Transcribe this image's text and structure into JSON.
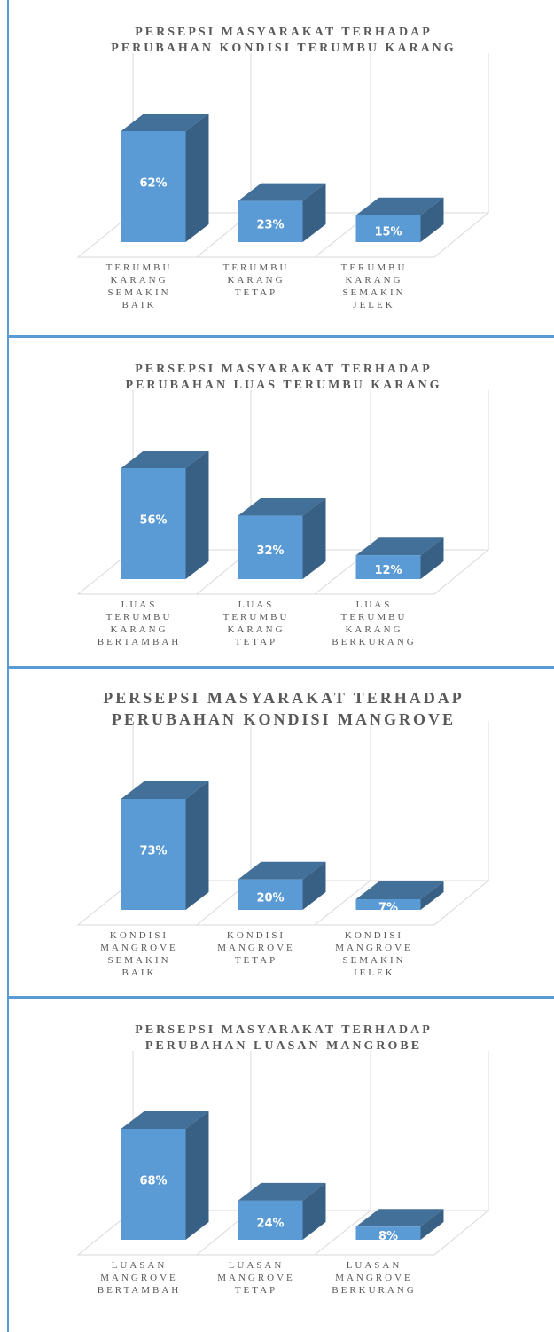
{
  "chart_data": [
    {
      "type": "bar",
      "title": [
        "PERSEPSI MASYARAKAT TERHADAP",
        "PERUBAHAN KONDISI TERUMBU KARANG"
      ],
      "categories": [
        "TERUMBU KARANG SEMAKIN BAIK",
        "TERUMBU KARANG TETAP",
        "TERUMBU KARANG SEMAKIN JELEK"
      ],
      "values": [
        62,
        23,
        15
      ],
      "value_labels": [
        "62%",
        "23%",
        "15%"
      ],
      "color": "#5b9bd5"
    },
    {
      "type": "bar",
      "title": [
        "PERSEPSI MASYARAKAT TERHADAP",
        "PERUBAHAN LUAS TERUMBU KARANG"
      ],
      "categories": [
        "LUAS TERUMBU KARANG BERTAMBAH",
        "LUAS TERUMBU KARANG TETAP",
        "LUAS TERUMBU KARANG BERKURANG"
      ],
      "values": [
        56,
        32,
        12
      ],
      "value_labels": [
        "56%",
        "32%",
        "12%"
      ],
      "color": "#5b9bd5"
    },
    {
      "type": "bar",
      "title": [
        "PERSEPSI MASYARAKAT TERHADAP",
        "PERUBAHAN  KONDISI MANGROVE"
      ],
      "categories": [
        "KONDISI MANGROVE SEMAKIN BAIK",
        "KONDISI MANGROVE TETAP",
        "KONDISI MANGROVE SEMAKIN JELEK"
      ],
      "values": [
        73,
        20,
        7
      ],
      "value_labels": [
        "73%",
        "20%",
        "7%"
      ],
      "color": "#5b9bd5"
    },
    {
      "type": "bar",
      "title": [
        "PERSEPSI MASYARAKAT TERHADAP",
        "PERUBAHAN LUASAN MANGROBE"
      ],
      "categories": [
        "LUASAN MANGROVE BERTAMBAH",
        "LUASAN MANGROVE TETAP",
        "LUASAN MANGROVE BERKURANG"
      ],
      "values": [
        68,
        24,
        8
      ],
      "value_labels": [
        "68%",
        "24%",
        "8%"
      ],
      "color": "#5b9bd5"
    }
  ]
}
